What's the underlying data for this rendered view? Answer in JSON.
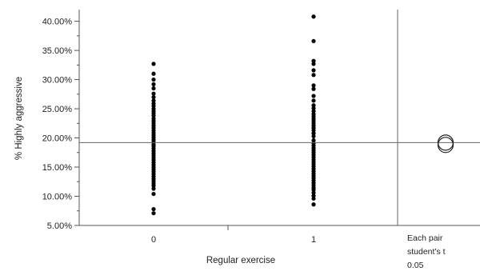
{
  "chart_data": {
    "type": "scatter",
    "title": "",
    "xlabel": "Regular exercise",
    "ylabel": "% Highly aggressive",
    "categories": [
      "0",
      "1"
    ],
    "ylim": [
      5,
      42
    ],
    "y_ticks": [
      "5.00%",
      "10.00%",
      "15.00%",
      "20.00%",
      "25.00%",
      "30.00%",
      "35.00%",
      "40.00%"
    ],
    "y_tick_values": [
      5,
      10,
      15,
      20,
      25,
      30,
      35,
      40
    ],
    "reference_line": 19.2,
    "grid": false,
    "series": [
      {
        "category": "0",
        "values": [
          32.7,
          31.0,
          30.0,
          29.2,
          28.5,
          27.6,
          27.0,
          26.4,
          25.9,
          25.5,
          25.0,
          24.6,
          24.2,
          23.8,
          23.3,
          22.9,
          22.5,
          22.1,
          21.7,
          21.3,
          20.9,
          20.5,
          20.1,
          19.7,
          19.3,
          18.9,
          18.6,
          18.2,
          17.8,
          17.4,
          17.0,
          16.6,
          16.2,
          15.8,
          15.4,
          15.0,
          14.6,
          14.2,
          13.8,
          13.4,
          13.0,
          12.6,
          12.2,
          11.8,
          11.3,
          10.4,
          7.8,
          7.1
        ]
      },
      {
        "category": "1",
        "values": [
          40.8,
          36.6,
          33.2,
          32.7,
          31.6,
          30.8,
          29.0,
          28.4,
          27.2,
          26.4,
          25.6,
          25.1,
          24.6,
          24.1,
          23.7,
          23.3,
          22.9,
          22.5,
          22.1,
          21.7,
          21.3,
          20.8,
          20.3,
          19.6,
          19.1,
          18.7,
          18.3,
          17.9,
          17.5,
          17.1,
          16.7,
          16.3,
          15.9,
          15.5,
          15.1,
          14.7,
          14.3,
          13.9,
          13.5,
          13.1,
          12.7,
          12.3,
          11.9,
          11.5,
          11.1,
          10.6,
          10.1,
          9.6,
          8.6
        ]
      }
    ],
    "side_panel": {
      "lines": [
        "Each pair",
        "student's t",
        "0.05"
      ],
      "circles": [
        {
          "center": 19.2,
          "radius": 1.3
        },
        {
          "center": 18.8,
          "radius": 1.3
        }
      ]
    }
  }
}
